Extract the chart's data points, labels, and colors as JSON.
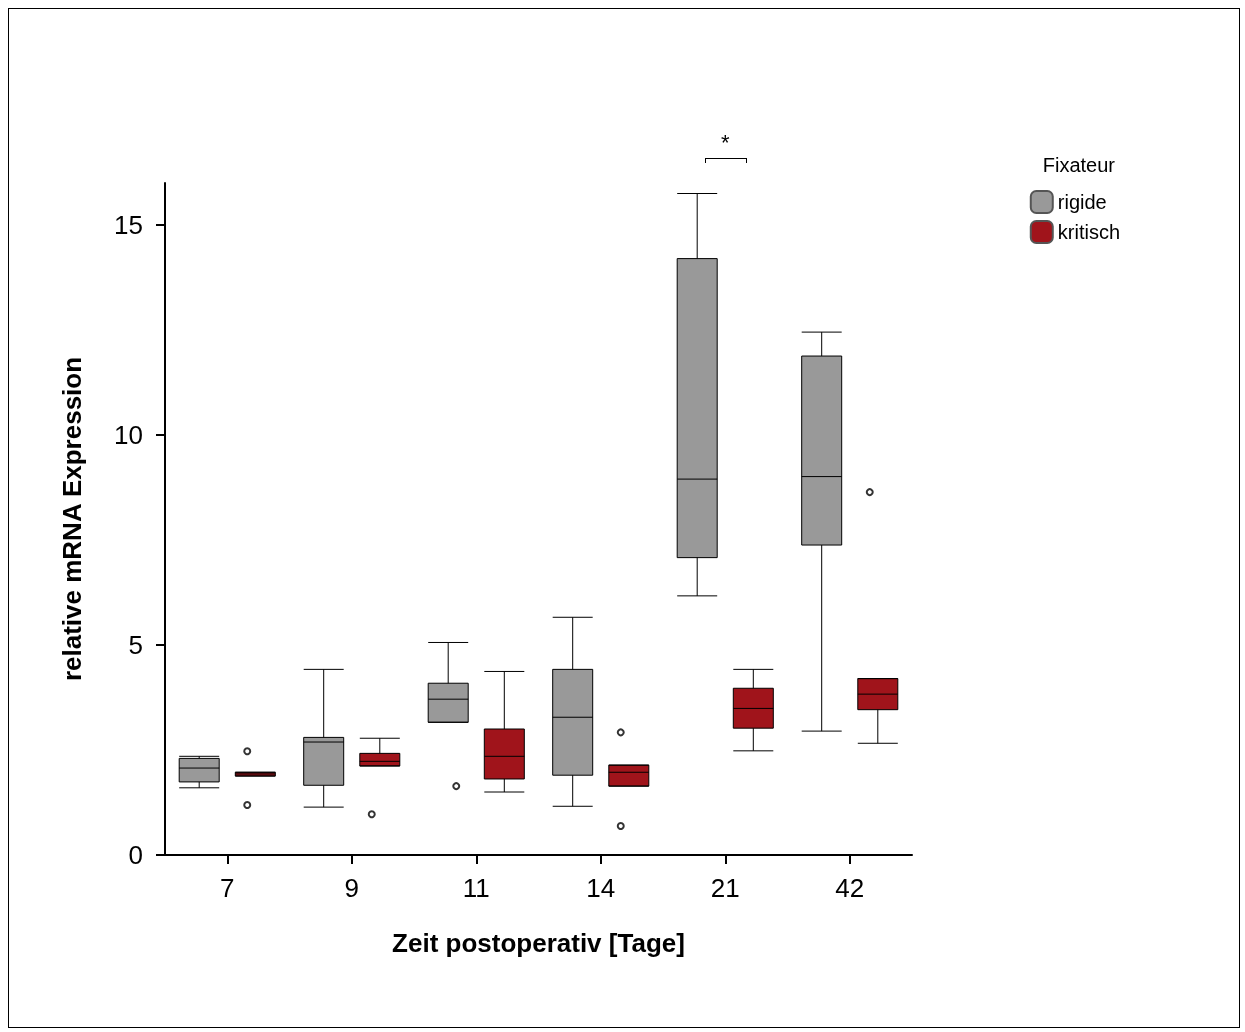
{
  "chart_data": {
    "type": "box",
    "xlabel": "Zeit postoperativ [Tage]",
    "ylabel": "relative mRNA Expression",
    "legend_title": "Fixateur",
    "categories": [
      "7",
      "9",
      "11",
      "14",
      "21",
      "42"
    ],
    "ylim": [
      0,
      16
    ],
    "yticks": [
      0,
      5,
      10,
      15
    ],
    "series": [
      {
        "name": "rigide",
        "color": "#999999",
        "boxes": [
          {
            "low": 1.6,
            "q1": 1.74,
            "median": 2.07,
            "q3": 2.3,
            "high": 2.35
          },
          {
            "low": 1.14,
            "q1": 1.66,
            "median": 2.69,
            "q3": 2.8,
            "high": 4.42
          },
          {
            "low": 3.16,
            "q1": 3.16,
            "median": 3.71,
            "q3": 4.09,
            "high": 5.06,
            "outliers": [
              1.64
            ]
          },
          {
            "low": 1.16,
            "q1": 1.9,
            "median": 3.28,
            "q3": 4.42,
            "high": 5.66
          },
          {
            "low": 6.17,
            "q1": 7.08,
            "median": 8.95,
            "q3": 14.2,
            "high": 15.75
          },
          {
            "low": 2.95,
            "q1": 7.38,
            "median": 9.01,
            "q3": 11.88,
            "high": 12.45
          }
        ]
      },
      {
        "name": "kritisch",
        "color": "#a0141b",
        "boxes": [
          {
            "low": 1.88,
            "q1": 1.88,
            "median": 1.93,
            "q3": 1.97,
            "high": 1.97,
            "outliers": [
              2.47,
              1.19
            ]
          },
          {
            "low": 2.12,
            "q1": 2.12,
            "median": 2.23,
            "q3": 2.42,
            "high": 2.78,
            "outliers": [
              0.97
            ]
          },
          {
            "low": 1.5,
            "q1": 1.81,
            "median": 2.35,
            "q3": 3.0,
            "high": 4.37
          },
          {
            "low": 1.64,
            "q1": 1.64,
            "median": 1.97,
            "q3": 2.14,
            "high": 2.14,
            "outliers": [
              2.92,
              0.69
            ]
          },
          {
            "low": 2.48,
            "q1": 3.02,
            "median": 3.49,
            "q3": 3.97,
            "high": 4.42
          },
          {
            "low": 2.66,
            "q1": 3.46,
            "median": 3.83,
            "q3": 4.2,
            "high": 4.2,
            "outliers": [
              8.64
            ]
          }
        ]
      }
    ],
    "annotations": [
      "*"
    ],
    "legend": "right",
    "grid": false
  }
}
